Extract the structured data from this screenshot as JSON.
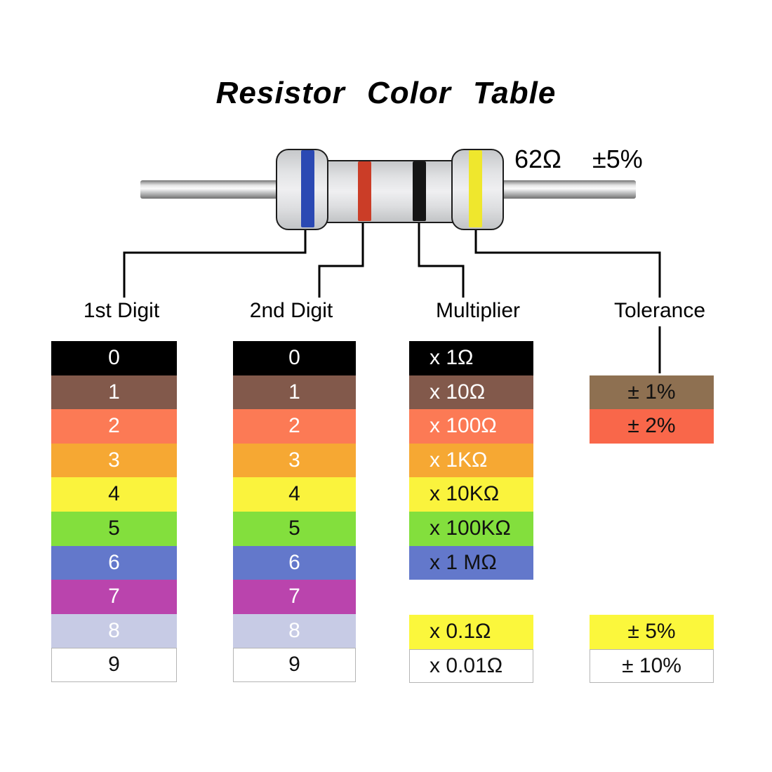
{
  "title": "Resistor Color Table",
  "resistor": {
    "value_label": "62Ω",
    "tolerance_label": "±5%",
    "body_color": "#DFE0E2",
    "bands": [
      {
        "name": "blue-band",
        "color": "#2B49B3",
        "points_to": "1st Digit"
      },
      {
        "name": "red-band",
        "color": "#CB3D27",
        "points_to": "2nd Digit"
      },
      {
        "name": "black-band",
        "color": "#151515",
        "points_to": "Multiplier"
      },
      {
        "name": "yellow-band",
        "color": "#EFE72D",
        "points_to": "Tolerance"
      }
    ]
  },
  "columns": [
    {
      "id": "digit1",
      "header": "1st Digit",
      "rows": [
        {
          "label": "0",
          "bg": "#000000",
          "fg": "#FFFFFF"
        },
        {
          "label": "1",
          "bg": "#82594B",
          "fg": "#FFFFFF"
        },
        {
          "label": "2",
          "bg": "#FC7A55",
          "fg": "#FFFFFF"
        },
        {
          "label": "3",
          "bg": "#F6A833",
          "fg": "#FFFFFF"
        },
        {
          "label": "4",
          "bg": "#FAF33D",
          "fg": "#111111"
        },
        {
          "label": "5",
          "bg": "#83DF3D",
          "fg": "#111111"
        },
        {
          "label": "6",
          "bg": "#6378CB",
          "fg": "#FFFFFF"
        },
        {
          "label": "7",
          "bg": "#BA44AD",
          "fg": "#FFFFFF"
        },
        {
          "label": "8",
          "bg": "#C7CBE5",
          "fg": "#FFFFFF"
        },
        {
          "label": "9",
          "bg": "#FFFFFF",
          "fg": "#111111",
          "border": true
        }
      ]
    },
    {
      "id": "digit2",
      "header": "2nd Digit",
      "rows": [
        {
          "label": "0",
          "bg": "#000000",
          "fg": "#FFFFFF"
        },
        {
          "label": "1",
          "bg": "#82594B",
          "fg": "#FFFFFF"
        },
        {
          "label": "2",
          "bg": "#FC7A55",
          "fg": "#FFFFFF"
        },
        {
          "label": "3",
          "bg": "#F6A833",
          "fg": "#FFFFFF"
        },
        {
          "label": "4",
          "bg": "#FAF33D",
          "fg": "#111111"
        },
        {
          "label": "5",
          "bg": "#83DF3D",
          "fg": "#111111"
        },
        {
          "label": "6",
          "bg": "#6378CB",
          "fg": "#FFFFFF"
        },
        {
          "label": "7",
          "bg": "#BA44AD",
          "fg": "#FFFFFF"
        },
        {
          "label": "8",
          "bg": "#C7CBE5",
          "fg": "#FFFFFF"
        },
        {
          "label": "9",
          "bg": "#FFFFFF",
          "fg": "#111111",
          "border": true
        }
      ]
    },
    {
      "id": "multiplier",
      "header": "Multiplier",
      "rows": [
        {
          "label": "x 1Ω",
          "bg": "#000000",
          "fg": "#FFFFFF"
        },
        {
          "label": "x 10Ω",
          "bg": "#82594B",
          "fg": "#FFFFFF"
        },
        {
          "label": "x 100Ω",
          "bg": "#FC7A55",
          "fg": "#FFFFFF"
        },
        {
          "label": "x 1KΩ",
          "bg": "#F6A833",
          "fg": "#FFFFFF"
        },
        {
          "label": "x 10KΩ",
          "bg": "#FAF33D",
          "fg": "#111111"
        },
        {
          "label": "x 100KΩ",
          "bg": "#83DF3D",
          "fg": "#111111"
        },
        {
          "label": "x 1 MΩ",
          "bg": "#6378CB",
          "fg": "#111111"
        }
      ],
      "extra_rows": [
        {
          "label": "x 0.1Ω",
          "bg": "#FBF73C",
          "fg": "#111111"
        },
        {
          "label": "x 0.01Ω",
          "bg": "#FFFFFF",
          "fg": "#111111",
          "border": true
        }
      ]
    },
    {
      "id": "tolerance",
      "header": "Tolerance",
      "rows": [
        {
          "label": "± 1%",
          "bg": "#8E7051",
          "fg": "#111111"
        },
        {
          "label": "± 2%",
          "bg": "#F9674A",
          "fg": "#111111"
        }
      ],
      "extra_rows": [
        {
          "label": "± 5%",
          "bg": "#FBF73C",
          "fg": "#111111"
        },
        {
          "label": "± 10%",
          "bg": "#FFFFFF",
          "fg": "#111111",
          "border": true
        }
      ]
    }
  ]
}
